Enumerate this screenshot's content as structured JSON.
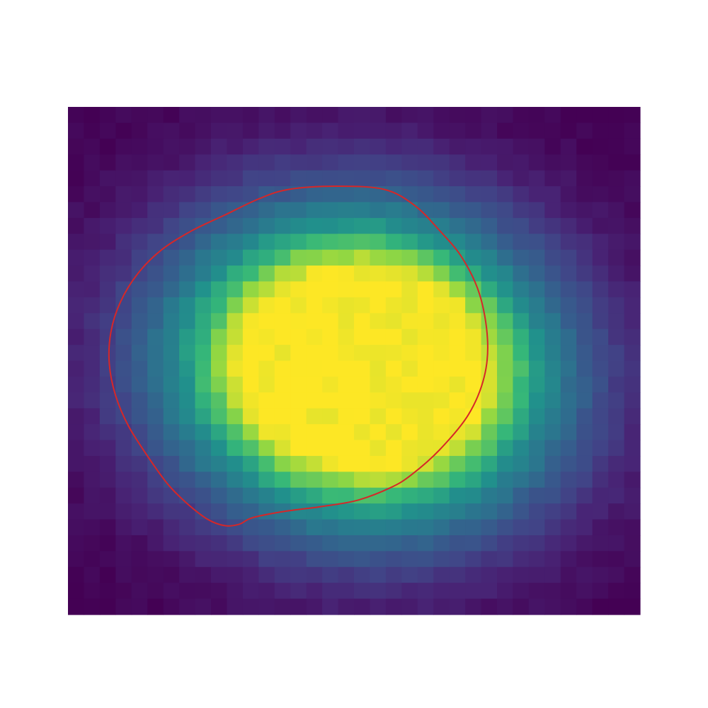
{
  "chart_data": {
    "type": "heatmap",
    "grid": {
      "cols": 36,
      "rows": 32
    },
    "title": "",
    "xlabel": "",
    "ylabel": "",
    "axes_visible": false,
    "colormap": "viridis",
    "value_range": [
      0,
      1
    ],
    "blob_model": {
      "center": [
        18.5,
        16.5
      ],
      "radius_x": 13.0,
      "radius_y": 10.5,
      "rotation_deg": -8,
      "plateau_level": 1.0,
      "falloff_power": 2.4
    },
    "contour": {
      "color": "#d62728",
      "level": 0.5,
      "points": [
        [
          13.9,
          5.2
        ],
        [
          16.9,
          5.0
        ],
        [
          19.9,
          5.2
        ],
        [
          21.8,
          6.2
        ],
        [
          23.3,
          7.7
        ],
        [
          24.8,
          9.5
        ],
        [
          25.9,
          11.8
        ],
        [
          26.4,
          14.6
        ],
        [
          26.2,
          17.0
        ],
        [
          25.2,
          19.4
        ],
        [
          23.4,
          21.6
        ],
        [
          21.6,
          23.2
        ],
        [
          20.3,
          24.0
        ],
        [
          18.2,
          24.8
        ],
        [
          15.9,
          25.2
        ],
        [
          13.6,
          25.5
        ],
        [
          11.6,
          25.9
        ],
        [
          10.8,
          26.3
        ],
        [
          9.9,
          26.4
        ],
        [
          8.8,
          26.0
        ],
        [
          7.5,
          25.0
        ],
        [
          6.3,
          23.8
        ],
        [
          5.0,
          22.0
        ],
        [
          3.8,
          20.1
        ],
        [
          3.0,
          18.2
        ],
        [
          2.6,
          16.2
        ],
        [
          2.7,
          14.2
        ],
        [
          3.3,
          12.3
        ],
        [
          4.4,
          10.5
        ],
        [
          5.9,
          9.0
        ],
        [
          7.8,
          7.8
        ],
        [
          9.9,
          6.8
        ],
        [
          12.0,
          5.8
        ],
        [
          13.9,
          5.2
        ]
      ]
    }
  }
}
